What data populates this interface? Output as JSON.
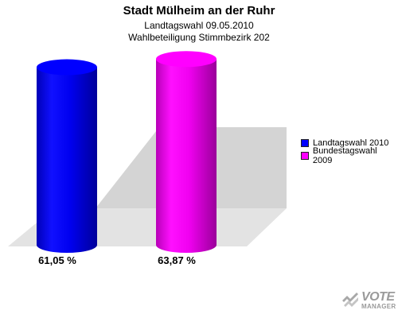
{
  "chart_data": {
    "type": "bar",
    "title": "Stadt Mülheim an der Ruhr",
    "subtitle_lines": [
      "Landtagswahl 09.05.2010",
      "Wahlbeteiligung Stimmbezirk 202"
    ],
    "ylim": [
      0,
      70
    ],
    "grid": false,
    "legend_position": "right",
    "series": [
      {
        "name": "Landtagswahl 2010",
        "value": 61.05,
        "label": "61,05 %",
        "color": "#0000ff"
      },
      {
        "name": "Bundestagswahl 2009",
        "value": 63.87,
        "label": "63,87 %",
        "color": "#ff00ff"
      }
    ]
  },
  "logo": {
    "icon": "vote-manager-logo-icon",
    "big": "VOTE",
    "small": "MANAGER"
  }
}
